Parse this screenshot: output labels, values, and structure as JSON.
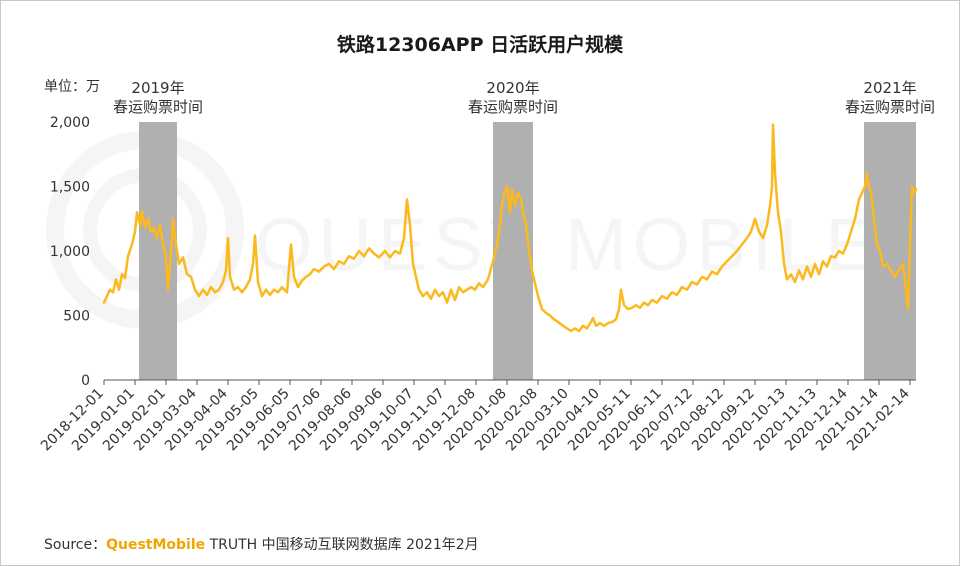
{
  "page": {
    "title": "铁路12306APP 日活跃用户规模",
    "unit_label": "单位：万",
    "source_prefix": "Source：",
    "source_brand": "QuestMobile",
    "source_suffix": " TRUTH 中国移动互联网数据库 2021年2月",
    "watermark": "QUEST MOBILE"
  },
  "chart_data": {
    "type": "line",
    "title": "铁路12306APP 日活跃用户规模",
    "ylabel": "单位：万",
    "ylim": [
      0,
      2000
    ],
    "yticks": [
      "0",
      "500",
      "1,000",
      "1,500",
      "2,000"
    ],
    "xticks": [
      "2018-12-01",
      "2019-01-01",
      "2019-02-01",
      "2019-03-04",
      "2019-04-04",
      "2019-05-05",
      "2019-06-05",
      "2019-07-06",
      "2019-08-06",
      "2019-09-06",
      "2019-10-07",
      "2019-11-07",
      "2019-12-08",
      "2020-01-08",
      "2020-02-08",
      "2020-03-10",
      "2020-04-10",
      "2020-05-11",
      "2020-06-11",
      "2020-07-12",
      "2020-08-12",
      "2020-09-12",
      "2020-10-13",
      "2020-11-13",
      "2020-12-14",
      "2021-01-14",
      "2021-02-14"
    ],
    "x_range": [
      "2018-12-01",
      "2021-02-20"
    ],
    "grid": false,
    "colors": {
      "line": "#fbb91d",
      "band": "#b0b0b0"
    },
    "shaded_periods": [
      {
        "label_year": "2019年",
        "label_text": "春运购票时间",
        "start": "2019-01-05",
        "end": "2019-02-12"
      },
      {
        "label_year": "2020年",
        "label_text": "春运购票时间",
        "start": "2019-12-25",
        "end": "2020-02-03"
      },
      {
        "label_year": "2021年",
        "label_text": "春运购票时间",
        "start": "2020-12-30",
        "end": "2021-02-20"
      }
    ],
    "series": [
      {
        "points": [
          [
            "2018-12-01",
            600
          ],
          [
            "2018-12-04",
            650
          ],
          [
            "2018-12-07",
            700
          ],
          [
            "2018-12-10",
            680
          ],
          [
            "2018-12-13",
            780
          ],
          [
            "2018-12-16",
            700
          ],
          [
            "2018-12-19",
            820
          ],
          [
            "2018-12-22",
            790
          ],
          [
            "2018-12-25",
            960
          ],
          [
            "2018-12-29",
            1050
          ],
          [
            "2019-01-01",
            1150
          ],
          [
            "2019-01-03",
            1300
          ],
          [
            "2019-01-06",
            1200
          ],
          [
            "2019-01-08",
            1310
          ],
          [
            "2019-01-11",
            1180
          ],
          [
            "2019-01-14",
            1250
          ],
          [
            "2019-01-17",
            1150
          ],
          [
            "2019-01-20",
            1180
          ],
          [
            "2019-01-23",
            1100
          ],
          [
            "2019-01-26",
            1200
          ],
          [
            "2019-01-29",
            1050
          ],
          [
            "2019-02-01",
            950
          ],
          [
            "2019-02-03",
            700
          ],
          [
            "2019-02-06",
            1000
          ],
          [
            "2019-02-08",
            1250
          ],
          [
            "2019-02-11",
            1050
          ],
          [
            "2019-02-14",
            900
          ],
          [
            "2019-02-18",
            950
          ],
          [
            "2019-02-22",
            820
          ],
          [
            "2019-02-26",
            800
          ],
          [
            "2019-03-02",
            700
          ],
          [
            "2019-03-06",
            650
          ],
          [
            "2019-03-10",
            700
          ],
          [
            "2019-03-14",
            660
          ],
          [
            "2019-03-18",
            720
          ],
          [
            "2019-03-22",
            680
          ],
          [
            "2019-03-26",
            700
          ],
          [
            "2019-03-30",
            760
          ],
          [
            "2019-04-02",
            850
          ],
          [
            "2019-04-04",
            1100
          ],
          [
            "2019-04-06",
            800
          ],
          [
            "2019-04-10",
            700
          ],
          [
            "2019-04-14",
            720
          ],
          [
            "2019-04-18",
            680
          ],
          [
            "2019-04-22",
            720
          ],
          [
            "2019-04-26",
            780
          ],
          [
            "2019-04-29",
            900
          ],
          [
            "2019-05-01",
            1120
          ],
          [
            "2019-05-04",
            760
          ],
          [
            "2019-05-08",
            650
          ],
          [
            "2019-05-12",
            700
          ],
          [
            "2019-05-16",
            660
          ],
          [
            "2019-05-20",
            700
          ],
          [
            "2019-05-24",
            680
          ],
          [
            "2019-05-28",
            720
          ],
          [
            "2019-06-02",
            680
          ],
          [
            "2019-06-06",
            1050
          ],
          [
            "2019-06-09",
            800
          ],
          [
            "2019-06-13",
            720
          ],
          [
            "2019-06-17",
            770
          ],
          [
            "2019-06-21",
            800
          ],
          [
            "2019-06-25",
            820
          ],
          [
            "2019-06-29",
            860
          ],
          [
            "2019-07-04",
            840
          ],
          [
            "2019-07-09",
            880
          ],
          [
            "2019-07-14",
            900
          ],
          [
            "2019-07-19",
            860
          ],
          [
            "2019-07-24",
            920
          ],
          [
            "2019-07-29",
            900
          ],
          [
            "2019-08-03",
            960
          ],
          [
            "2019-08-08",
            940
          ],
          [
            "2019-08-13",
            1000
          ],
          [
            "2019-08-18",
            960
          ],
          [
            "2019-08-23",
            1020
          ],
          [
            "2019-08-28",
            980
          ],
          [
            "2019-09-02",
            950
          ],
          [
            "2019-09-08",
            1000
          ],
          [
            "2019-09-13",
            950
          ],
          [
            "2019-09-18",
            1000
          ],
          [
            "2019-09-23",
            980
          ],
          [
            "2019-09-27",
            1100
          ],
          [
            "2019-09-30",
            1400
          ],
          [
            "2019-10-03",
            1200
          ],
          [
            "2019-10-06",
            900
          ],
          [
            "2019-10-09",
            800
          ],
          [
            "2019-10-12",
            700
          ],
          [
            "2019-10-16",
            650
          ],
          [
            "2019-10-20",
            680
          ],
          [
            "2019-10-24",
            630
          ],
          [
            "2019-10-28",
            700
          ],
          [
            "2019-11-01",
            650
          ],
          [
            "2019-11-05",
            680
          ],
          [
            "2019-11-09",
            600
          ],
          [
            "2019-11-13",
            700
          ],
          [
            "2019-11-17",
            620
          ],
          [
            "2019-11-21",
            720
          ],
          [
            "2019-11-25",
            680
          ],
          [
            "2019-11-29",
            700
          ],
          [
            "2019-12-03",
            720
          ],
          [
            "2019-12-07",
            700
          ],
          [
            "2019-12-11",
            750
          ],
          [
            "2019-12-15",
            720
          ],
          [
            "2019-12-20",
            780
          ],
          [
            "2019-12-25",
            920
          ],
          [
            "2019-12-29",
            1050
          ],
          [
            "2020-01-01",
            1200
          ],
          [
            "2020-01-03",
            1350
          ],
          [
            "2020-01-05",
            1450
          ],
          [
            "2020-01-08",
            1500
          ],
          [
            "2020-01-11",
            1300
          ],
          [
            "2020-01-13",
            1480
          ],
          [
            "2020-01-16",
            1350
          ],
          [
            "2020-01-19",
            1450
          ],
          [
            "2020-01-22",
            1400
          ],
          [
            "2020-01-24",
            1300
          ],
          [
            "2020-01-27",
            1200
          ],
          [
            "2020-01-30",
            1000
          ],
          [
            "2020-02-02",
            850
          ],
          [
            "2020-02-05",
            750
          ],
          [
            "2020-02-08",
            650
          ],
          [
            "2020-02-12",
            550
          ],
          [
            "2020-02-16",
            520
          ],
          [
            "2020-02-20",
            500
          ],
          [
            "2020-02-24",
            470
          ],
          [
            "2020-02-28",
            450
          ],
          [
            "2020-03-04",
            420
          ],
          [
            "2020-03-08",
            400
          ],
          [
            "2020-03-12",
            380
          ],
          [
            "2020-03-16",
            400
          ],
          [
            "2020-03-20",
            380
          ],
          [
            "2020-03-24",
            420
          ],
          [
            "2020-03-28",
            400
          ],
          [
            "2020-04-01",
            450
          ],
          [
            "2020-04-03",
            480
          ],
          [
            "2020-04-06",
            420
          ],
          [
            "2020-04-10",
            440
          ],
          [
            "2020-04-14",
            420
          ],
          [
            "2020-04-18",
            440
          ],
          [
            "2020-04-22",
            450
          ],
          [
            "2020-04-26",
            470
          ],
          [
            "2020-04-29",
            550
          ],
          [
            "2020-05-01",
            700
          ],
          [
            "2020-05-04",
            580
          ],
          [
            "2020-05-08",
            550
          ],
          [
            "2020-05-12",
            560
          ],
          [
            "2020-05-16",
            580
          ],
          [
            "2020-05-20",
            560
          ],
          [
            "2020-05-24",
            600
          ],
          [
            "2020-05-28",
            580
          ],
          [
            "2020-06-01",
            620
          ],
          [
            "2020-06-06",
            600
          ],
          [
            "2020-06-11",
            650
          ],
          [
            "2020-06-16",
            630
          ],
          [
            "2020-06-21",
            680
          ],
          [
            "2020-06-26",
            660
          ],
          [
            "2020-07-01",
            720
          ],
          [
            "2020-07-06",
            700
          ],
          [
            "2020-07-11",
            760
          ],
          [
            "2020-07-16",
            740
          ],
          [
            "2020-07-21",
            800
          ],
          [
            "2020-07-26",
            780
          ],
          [
            "2020-07-31",
            840
          ],
          [
            "2020-08-05",
            820
          ],
          [
            "2020-08-10",
            880
          ],
          [
            "2020-08-15",
            920
          ],
          [
            "2020-08-20",
            960
          ],
          [
            "2020-08-25",
            1000
          ],
          [
            "2020-08-30",
            1050
          ],
          [
            "2020-09-04",
            1100
          ],
          [
            "2020-09-08",
            1150
          ],
          [
            "2020-09-12",
            1250
          ],
          [
            "2020-09-16",
            1150
          ],
          [
            "2020-09-20",
            1100
          ],
          [
            "2020-09-24",
            1200
          ],
          [
            "2020-09-27",
            1350
          ],
          [
            "2020-09-29",
            1500
          ],
          [
            "2020-09-30",
            1980
          ],
          [
            "2020-10-02",
            1600
          ],
          [
            "2020-10-05",
            1300
          ],
          [
            "2020-10-08",
            1150
          ],
          [
            "2020-10-11",
            900
          ],
          [
            "2020-10-14",
            780
          ],
          [
            "2020-10-18",
            820
          ],
          [
            "2020-10-22",
            760
          ],
          [
            "2020-10-26",
            850
          ],
          [
            "2020-10-30",
            780
          ],
          [
            "2020-11-03",
            880
          ],
          [
            "2020-11-07",
            800
          ],
          [
            "2020-11-11",
            900
          ],
          [
            "2020-11-15",
            820
          ],
          [
            "2020-11-19",
            920
          ],
          [
            "2020-11-23",
            880
          ],
          [
            "2020-11-27",
            960
          ],
          [
            "2020-12-01",
            950
          ],
          [
            "2020-12-05",
            1000
          ],
          [
            "2020-12-09",
            980
          ],
          [
            "2020-12-13",
            1050
          ],
          [
            "2020-12-17",
            1150
          ],
          [
            "2020-12-21",
            1250
          ],
          [
            "2020-12-25",
            1400
          ],
          [
            "2020-12-28",
            1450
          ],
          [
            "2020-12-31",
            1500
          ],
          [
            "2021-01-02",
            1600
          ],
          [
            "2021-01-04",
            1500
          ],
          [
            "2021-01-06",
            1450
          ],
          [
            "2021-01-09",
            1250
          ],
          [
            "2021-01-12",
            1050
          ],
          [
            "2021-01-15",
            1000
          ],
          [
            "2021-01-18",
            880
          ],
          [
            "2021-01-22",
            900
          ],
          [
            "2021-01-26",
            850
          ],
          [
            "2021-01-30",
            800
          ],
          [
            "2021-02-03",
            850
          ],
          [
            "2021-02-07",
            900
          ],
          [
            "2021-02-10",
            700
          ],
          [
            "2021-02-12",
            550
          ],
          [
            "2021-02-14",
            1050
          ],
          [
            "2021-02-16",
            1500
          ],
          [
            "2021-02-18",
            1450
          ],
          [
            "2021-02-20",
            1480
          ]
        ]
      }
    ]
  }
}
